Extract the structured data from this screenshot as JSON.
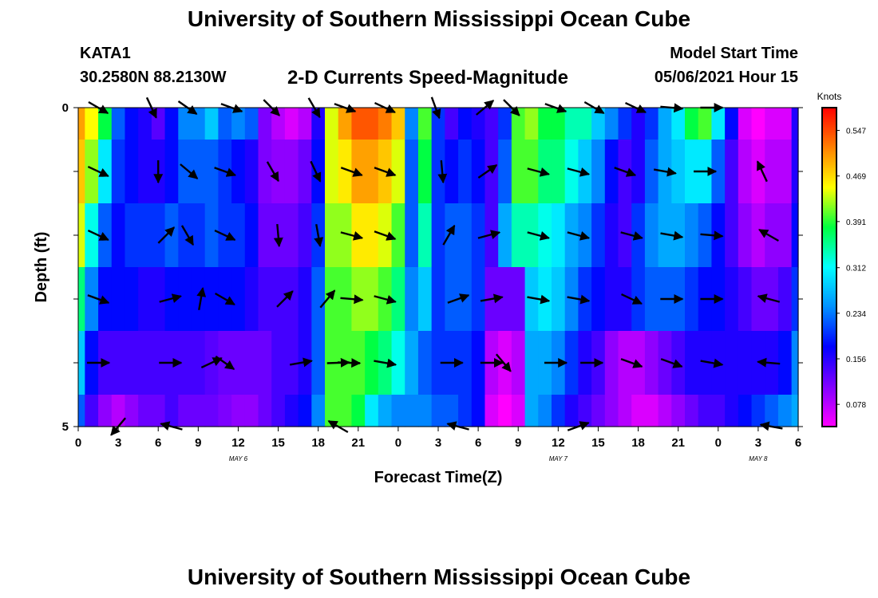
{
  "header": {
    "title": "University of Southern Mississippi Ocean Cube",
    "station_id": "KATA1",
    "station_coords": "30.2580N  88.2130W",
    "subtitle": "2-D Currents Speed-Magnitude",
    "model_start_label": "Model Start Time",
    "model_start_value": "05/06/2021 Hour 15"
  },
  "footer": {
    "title": "University of Southern Mississippi Ocean Cube"
  },
  "chart_data": {
    "type": "heatmap",
    "xlabel": "Forecast Time(Z)",
    "ylabel": "Depth (ft)",
    "x_tick_labels": [
      "0",
      "3",
      "6",
      "9",
      "12",
      "15",
      "18",
      "21",
      "0",
      "3",
      "6",
      "9",
      "12",
      "15",
      "18",
      "21",
      "0",
      "3",
      "6"
    ],
    "x_tick_hours": [
      0,
      3,
      6,
      9,
      12,
      15,
      18,
      21,
      24,
      27,
      30,
      33,
      36,
      39,
      42,
      45,
      48,
      51,
      54
    ],
    "date_labels": [
      {
        "text": "MAY 6",
        "hour": 12
      },
      {
        "text": "MAY 7",
        "hour": 36
      },
      {
        "text": "MAY 8",
        "hour": 51
      }
    ],
    "xlim": [
      0,
      54
    ],
    "y_tick_labels": [
      "0",
      "5"
    ],
    "ylim": [
      0,
      5
    ],
    "colorbar": {
      "title": "Knots",
      "tick_labels": [
        "0.547",
        "0.469",
        "0.391",
        "0.312",
        "0.234",
        "0.156",
        "0.078"
      ],
      "ticks": [
        0.547,
        0.469,
        0.391,
        0.312,
        0.234,
        0.156,
        0.078
      ],
      "range": [
        0.04,
        0.586
      ],
      "colors": [
        "#ff00ff",
        "#8000ff",
        "#0000ff",
        "#0090ff",
        "#00ffff",
        "#00ff40",
        "#ffff00",
        "#ff8000",
        "#ff0000"
      ]
    },
    "speed_columns_hours": [
      0,
      1,
      2,
      3,
      4,
      5,
      6,
      7,
      8,
      9,
      10,
      11,
      12,
      13,
      14,
      15,
      16,
      17,
      18,
      19,
      20,
      21,
      22,
      23,
      24,
      25,
      26,
      27,
      28,
      29,
      30,
      31,
      32,
      33,
      34,
      35,
      36,
      37,
      38,
      39,
      40,
      41,
      42,
      43,
      44,
      45,
      46,
      47,
      48,
      49,
      50,
      51,
      52,
      53,
      54
    ],
    "speed_rows_depth": [
      0,
      1,
      2,
      3,
      4,
      5
    ],
    "speed_knots": [
      [
        0.5,
        0.45,
        0.38,
        0.22,
        0.18,
        0.16,
        0.13,
        0.18,
        0.24,
        0.24,
        0.28,
        0.22,
        0.24,
        0.22,
        0.11,
        0.08,
        0.06,
        0.08,
        0.16,
        0.44,
        0.5,
        0.54,
        0.54,
        0.52,
        0.48,
        0.24,
        0.4,
        0.2,
        0.14,
        0.18,
        0.16,
        0.14,
        0.2,
        0.4,
        0.42,
        0.38,
        0.38,
        0.34,
        0.34,
        0.28,
        0.24,
        0.2,
        0.16,
        0.2,
        0.26,
        0.3,
        0.38,
        0.4,
        0.3,
        0.18,
        0.06,
        0.04,
        0.06,
        0.06,
        0.16
      ],
      [
        0.48,
        0.42,
        0.3,
        0.2,
        0.18,
        0.16,
        0.16,
        0.18,
        0.22,
        0.22,
        0.22,
        0.2,
        0.18,
        0.16,
        0.11,
        0.1,
        0.1,
        0.12,
        0.18,
        0.44,
        0.46,
        0.5,
        0.5,
        0.48,
        0.44,
        0.22,
        0.38,
        0.2,
        0.18,
        0.2,
        0.18,
        0.14,
        0.22,
        0.4,
        0.4,
        0.36,
        0.36,
        0.32,
        0.28,
        0.24,
        0.18,
        0.14,
        0.16,
        0.22,
        0.26,
        0.28,
        0.3,
        0.3,
        0.22,
        0.14,
        0.08,
        0.06,
        0.08,
        0.08,
        0.16
      ],
      [
        0.44,
        0.32,
        0.22,
        0.18,
        0.2,
        0.2,
        0.2,
        0.22,
        0.2,
        0.2,
        0.22,
        0.2,
        0.2,
        0.18,
        0.12,
        0.12,
        0.12,
        0.14,
        0.2,
        0.42,
        0.42,
        0.46,
        0.46,
        0.44,
        0.4,
        0.22,
        0.34,
        0.2,
        0.22,
        0.22,
        0.2,
        0.14,
        0.26,
        0.34,
        0.34,
        0.32,
        0.3,
        0.26,
        0.24,
        0.2,
        0.16,
        0.14,
        0.2,
        0.24,
        0.26,
        0.26,
        0.24,
        0.22,
        0.18,
        0.14,
        0.1,
        0.08,
        0.1,
        0.1,
        0.18
      ],
      [
        0.36,
        0.24,
        0.18,
        0.18,
        0.18,
        0.16,
        0.16,
        0.18,
        0.18,
        0.18,
        0.18,
        0.18,
        0.18,
        0.16,
        0.14,
        0.14,
        0.14,
        0.16,
        0.22,
        0.4,
        0.4,
        0.42,
        0.42,
        0.4,
        0.36,
        0.24,
        0.28,
        0.2,
        0.22,
        0.22,
        0.2,
        0.12,
        0.12,
        0.12,
        0.28,
        0.3,
        0.28,
        0.24,
        0.2,
        0.18,
        0.16,
        0.16,
        0.2,
        0.22,
        0.22,
        0.22,
        0.2,
        0.18,
        0.18,
        0.16,
        0.14,
        0.12,
        0.12,
        0.14,
        0.2
      ],
      [
        0.28,
        0.18,
        0.14,
        0.14,
        0.14,
        0.14,
        0.14,
        0.14,
        0.14,
        0.14,
        0.13,
        0.12,
        0.12,
        0.12,
        0.12,
        0.14,
        0.14,
        0.16,
        0.22,
        0.4,
        0.4,
        0.4,
        0.38,
        0.36,
        0.32,
        0.26,
        0.22,
        0.2,
        0.2,
        0.2,
        0.18,
        0.08,
        0.06,
        0.08,
        0.26,
        0.26,
        0.24,
        0.2,
        0.16,
        0.14,
        0.1,
        0.08,
        0.08,
        0.1,
        0.12,
        0.14,
        0.16,
        0.16,
        0.16,
        0.16,
        0.16,
        0.16,
        0.16,
        0.18,
        0.24
      ],
      [
        0.22,
        0.14,
        0.1,
        0.08,
        0.1,
        0.12,
        0.12,
        0.14,
        0.12,
        0.12,
        0.12,
        0.11,
        0.1,
        0.1,
        0.12,
        0.14,
        0.16,
        0.18,
        0.24,
        0.4,
        0.4,
        0.38,
        0.3,
        0.26,
        0.24,
        0.24,
        0.24,
        0.22,
        0.22,
        0.2,
        0.18,
        0.06,
        0.04,
        0.06,
        0.26,
        0.24,
        0.2,
        0.16,
        0.14,
        0.12,
        0.1,
        0.08,
        0.06,
        0.06,
        0.08,
        0.1,
        0.12,
        0.14,
        0.14,
        0.16,
        0.18,
        0.2,
        0.22,
        0.24,
        0.26
      ]
    ],
    "vectors": [
      {
        "hour": 1.5,
        "depth": 0,
        "dir": 60
      },
      {
        "hour": 5.5,
        "depth": 0,
        "dir": 25
      },
      {
        "hour": 8.2,
        "depth": 0,
        "dir": 55
      },
      {
        "hour": 11.5,
        "depth": 0,
        "dir": 70
      },
      {
        "hour": 14.5,
        "depth": 0,
        "dir": 45
      },
      {
        "hour": 17.7,
        "depth": 0,
        "dir": 30
      },
      {
        "hour": 20,
        "depth": 0,
        "dir": 70
      },
      {
        "hour": 23,
        "depth": 0,
        "dir": 65
      },
      {
        "hour": 26.8,
        "depth": 0,
        "dir": 20
      },
      {
        "hour": 30.5,
        "depth": 0,
        "dir": 130
      },
      {
        "hour": 32.5,
        "depth": 0,
        "dir": 45
      },
      {
        "hour": 35.8,
        "depth": 0,
        "dir": 70
      },
      {
        "hour": 38.7,
        "depth": 0,
        "dir": 60
      },
      {
        "hour": 41.8,
        "depth": 0,
        "dir": 65
      },
      {
        "hour": 44.5,
        "depth": 0,
        "dir": 85
      },
      {
        "hour": 47.5,
        "depth": 0,
        "dir": 90
      },
      {
        "hour": 1.5,
        "depth": 1,
        "dir": 65
      },
      {
        "hour": 6,
        "depth": 1,
        "dir": 0
      },
      {
        "hour": 8.3,
        "depth": 1,
        "dir": 50
      },
      {
        "hour": 11,
        "depth": 1,
        "dir": 70
      },
      {
        "hour": 14.6,
        "depth": 1,
        "dir": 30
      },
      {
        "hour": 17.8,
        "depth": 1,
        "dir": 25
      },
      {
        "hour": 20.5,
        "depth": 1,
        "dir": 70
      },
      {
        "hour": 23,
        "depth": 1,
        "dir": 70
      },
      {
        "hour": 27.3,
        "depth": 1,
        "dir": 5
      },
      {
        "hour": 30.7,
        "depth": 1,
        "dir": 125
      },
      {
        "hour": 34.5,
        "depth": 1,
        "dir": 75
      },
      {
        "hour": 37.5,
        "depth": 1,
        "dir": 75
      },
      {
        "hour": 41,
        "depth": 1,
        "dir": 70
      },
      {
        "hour": 44,
        "depth": 1,
        "dir": 80
      },
      {
        "hour": 47,
        "depth": 1,
        "dir": 90
      },
      {
        "hour": 51.3,
        "depth": 1,
        "dir": 205
      },
      {
        "hour": 1.5,
        "depth": 2,
        "dir": 65
      },
      {
        "hour": 6.6,
        "depth": 2,
        "dir": 135
      },
      {
        "hour": 8.2,
        "depth": 2,
        "dir": 30
      },
      {
        "hour": 11,
        "depth": 2,
        "dir": 65
      },
      {
        "hour": 15,
        "depth": 2,
        "dir": 5
      },
      {
        "hour": 18,
        "depth": 2,
        "dir": 10
      },
      {
        "hour": 20.5,
        "depth": 2,
        "dir": 75
      },
      {
        "hour": 23,
        "depth": 2,
        "dir": 70
      },
      {
        "hour": 27.8,
        "depth": 2,
        "dir": 150
      },
      {
        "hour": 30.8,
        "depth": 2,
        "dir": 105
      },
      {
        "hour": 34.5,
        "depth": 2,
        "dir": 75
      },
      {
        "hour": 37.5,
        "depth": 2,
        "dir": 75
      },
      {
        "hour": 41.5,
        "depth": 2,
        "dir": 75
      },
      {
        "hour": 44.5,
        "depth": 2,
        "dir": 80
      },
      {
        "hour": 47.5,
        "depth": 2,
        "dir": 85
      },
      {
        "hour": 51.8,
        "depth": 2,
        "dir": 240
      },
      {
        "hour": 1.5,
        "depth": 3,
        "dir": 70
      },
      {
        "hour": 6.9,
        "depth": 3,
        "dir": 105
      },
      {
        "hour": 9.2,
        "depth": 3,
        "dir": 170
      },
      {
        "hour": 11,
        "depth": 3,
        "dir": 60
      },
      {
        "hour": 15.5,
        "depth": 3,
        "dir": 135
      },
      {
        "hour": 18.7,
        "depth": 3,
        "dir": 140
      },
      {
        "hour": 20.5,
        "depth": 3,
        "dir": 85
      },
      {
        "hour": 23,
        "depth": 3,
        "dir": 75
      },
      {
        "hour": 28.5,
        "depth": 3,
        "dir": 110
      },
      {
        "hour": 31,
        "depth": 3,
        "dir": 100
      },
      {
        "hour": 34.5,
        "depth": 3,
        "dir": 80
      },
      {
        "hour": 37.5,
        "depth": 3,
        "dir": 80
      },
      {
        "hour": 41.5,
        "depth": 3,
        "dir": 65
      },
      {
        "hour": 44.5,
        "depth": 3,
        "dir": 90
      },
      {
        "hour": 47.5,
        "depth": 3,
        "dir": 90
      },
      {
        "hour": 51.8,
        "depth": 3,
        "dir": 255
      },
      {
        "hour": 1.5,
        "depth": 4,
        "dir": 90
      },
      {
        "hour": 6.9,
        "depth": 4,
        "dir": 90
      },
      {
        "hour": 10,
        "depth": 4,
        "dir": 115
      },
      {
        "hour": 11,
        "depth": 4,
        "dir": 55
      },
      {
        "hour": 16.7,
        "depth": 4,
        "dir": 100
      },
      {
        "hour": 19.5,
        "depth": 4,
        "dir": 92
      },
      {
        "hour": 20.3,
        "depth": 4,
        "dir": 88
      },
      {
        "hour": 23,
        "depth": 4,
        "dir": 80
      },
      {
        "hour": 28,
        "depth": 4,
        "dir": 90
      },
      {
        "hour": 31,
        "depth": 4,
        "dir": 90
      },
      {
        "hour": 31.9,
        "depth": 4,
        "dir": 40
      },
      {
        "hour": 35.8,
        "depth": 4,
        "dir": 90
      },
      {
        "hour": 38.5,
        "depth": 4,
        "dir": 90
      },
      {
        "hour": 41.5,
        "depth": 4,
        "dir": 70
      },
      {
        "hour": 44.5,
        "depth": 4,
        "dir": 70
      },
      {
        "hour": 47.5,
        "depth": 4,
        "dir": 80
      },
      {
        "hour": 51.8,
        "depth": 4,
        "dir": 265
      },
      {
        "hour": 3,
        "depth": 5,
        "dir": 320
      },
      {
        "hour": 7,
        "depth": 5,
        "dir": 255
      },
      {
        "hour": 19.5,
        "depth": 5,
        "dir": 240
      },
      {
        "hour": 28.5,
        "depth": 5,
        "dir": 255
      },
      {
        "hour": 37.5,
        "depth": 5,
        "dir": 110
      },
      {
        "hour": 52,
        "depth": 5,
        "dir": 260
      }
    ]
  }
}
